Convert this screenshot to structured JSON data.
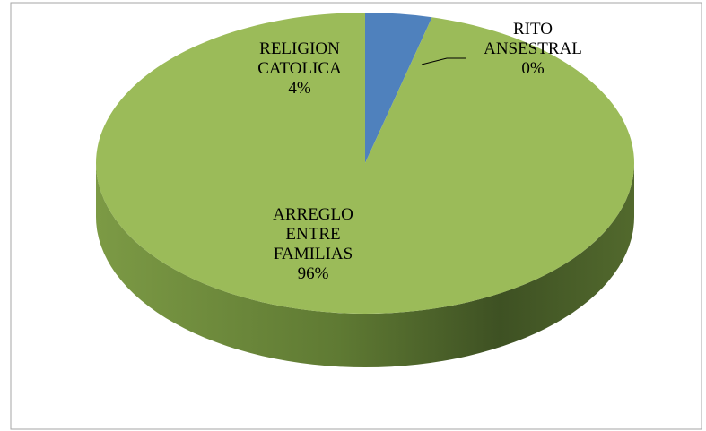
{
  "chart_data": {
    "type": "pie",
    "categories": [
      "RELIGION CATOLICA",
      "RITO ANSESTRAL",
      "ARREGLO ENTRE FAMILIAS"
    ],
    "values": [
      4,
      0,
      96
    ],
    "value_labels": [
      "4%",
      "0%",
      "96%"
    ],
    "colors": [
      "#4f81bd",
      "#c0504d",
      "#9bbb59"
    ]
  }
}
